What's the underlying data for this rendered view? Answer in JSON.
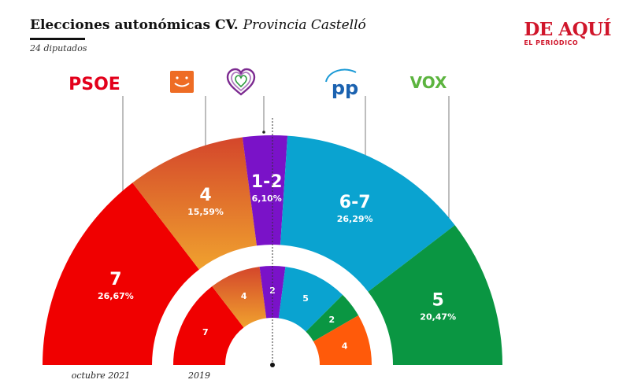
{
  "header": {
    "title": "Elecciones autonómicas CV.",
    "region": "Provincia Castelló",
    "subtitle": "24 diputados"
  },
  "brand": {
    "name": "DE AQUÍ",
    "tagline": "EL PERIÓDICO"
  },
  "parties": [
    {
      "id": "psoe",
      "logo_text": "PSOE",
      "color": "#e3001b"
    },
    {
      "id": "compromis",
      "logo_text": "",
      "color": "#ee6c24"
    },
    {
      "id": "podemos",
      "logo_text": "",
      "color": "#7c2a90"
    },
    {
      "id": "pp",
      "logo_text": "PP",
      "color": "#1b9ad6"
    },
    {
      "id": "vox",
      "logo_text": "VOX",
      "color": "#2a9b3b"
    }
  ],
  "chart_data": [
    {
      "type": "pie",
      "label": "octubre 2021",
      "total_seats": 24,
      "slices": [
        {
          "party": "psoe",
          "seats_label": "7",
          "seats": 7,
          "percent_label": "26,67%",
          "color": "#f00000",
          "color2": "#f00000"
        },
        {
          "party": "compromis",
          "seats_label": "4",
          "seats": 4,
          "percent_label": "15,59%",
          "color": "#d4462b",
          "color2": "#f0a22e"
        },
        {
          "party": "podemos",
          "seats_label": "1-2",
          "seats": 1.5,
          "percent_label": "6,10%",
          "color": "#7a12c8",
          "color2": "#7a12c8"
        },
        {
          "party": "pp",
          "seats_label": "6-7",
          "seats": 6.5,
          "percent_label": "26,29%",
          "color": "#0aa3d0",
          "color2": "#0aa3d0"
        },
        {
          "party": "vox",
          "seats_label": "5",
          "seats": 5,
          "percent_label": "20,47%",
          "color": "#0a9642",
          "color2": "#0a9642"
        }
      ]
    },
    {
      "type": "pie",
      "label": "2019",
      "total_seats": 24,
      "slices": [
        {
          "party": "psoe",
          "seats_label": "7",
          "seats": 7,
          "color": "#f00000",
          "color2": "#f00000"
        },
        {
          "party": "compromis",
          "seats_label": "4",
          "seats": 4,
          "color": "#d4462b",
          "color2": "#f0a22e"
        },
        {
          "party": "podemos",
          "seats_label": "2",
          "seats": 2,
          "color": "#7a12c8",
          "color2": "#7a12c8"
        },
        {
          "party": "pp",
          "seats_label": "5",
          "seats": 5,
          "color": "#0aa3d0",
          "color2": "#0aa3d0"
        },
        {
          "party": "vox",
          "seats_label": "2",
          "seats": 2,
          "color": "#0a9642",
          "color2": "#0a9642"
        },
        {
          "party": "cs",
          "seats_label": "4",
          "seats": 4,
          "color": "#ff5a0a",
          "color2": "#ff5a0a"
        }
      ]
    }
  ]
}
